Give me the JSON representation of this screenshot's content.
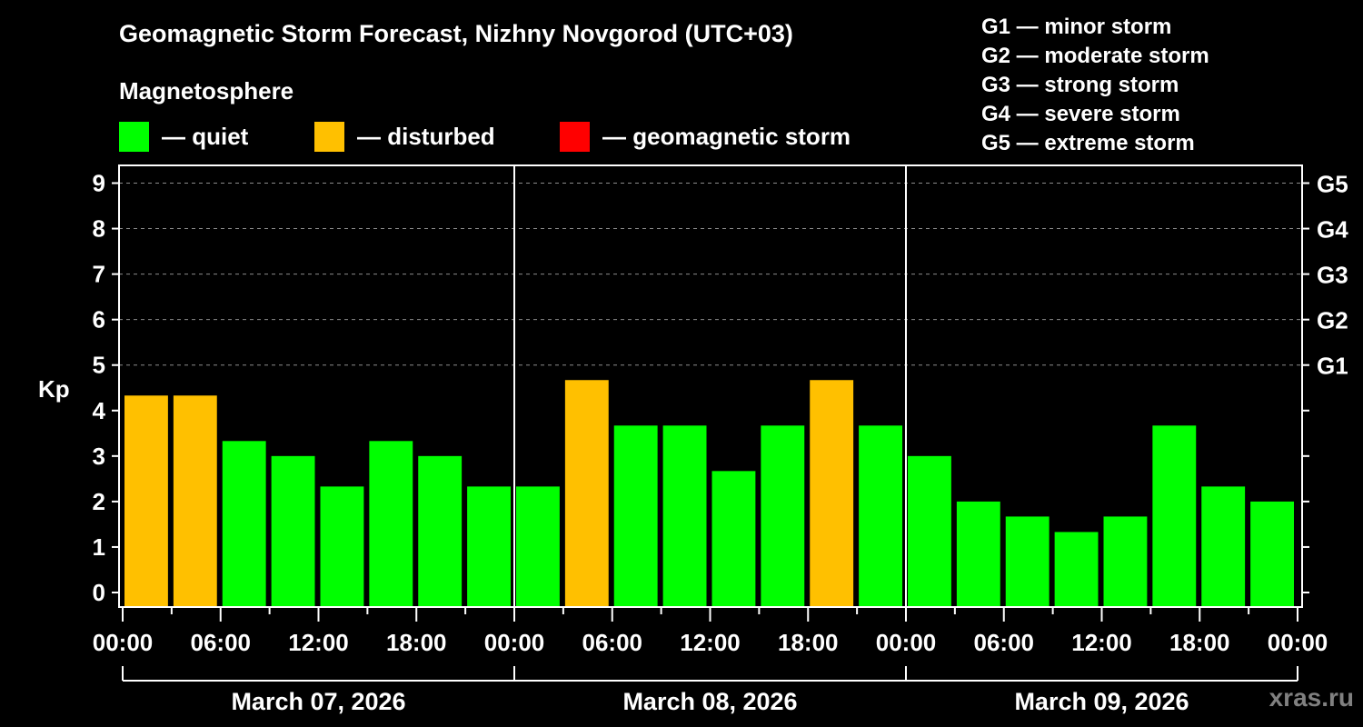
{
  "title": "Geomagnetic Storm Forecast, Nizhny Novgorod (UTC+03)",
  "legend": {
    "heading": "Magnetosphere",
    "items": [
      {
        "label": "— quiet",
        "color": "#00FF00"
      },
      {
        "label": "— disturbed",
        "color": "#FFC000"
      },
      {
        "label": "— geomagnetic storm",
        "color": "#FF0000"
      }
    ]
  },
  "g_scale": [
    "G1 — minor storm",
    "G2 — moderate storm",
    "G3 — strong storm",
    "G4 — severe storm",
    "G5 — extreme storm"
  ],
  "watermark": "xras.ru",
  "chart_data": {
    "type": "bar",
    "title": "Geomagnetic Storm Forecast, Nizhny Novgorod (UTC+03)",
    "xlabel": "",
    "ylabel": "Kp",
    "ylim": [
      0,
      9
    ],
    "yticks": [
      0,
      1,
      2,
      3,
      4,
      5,
      6,
      7,
      8,
      9
    ],
    "right_axis_labels": [
      {
        "kp": 5,
        "label": "G1"
      },
      {
        "kp": 6,
        "label": "G2"
      },
      {
        "kp": 7,
        "label": "G3"
      },
      {
        "kp": 8,
        "label": "G4"
      },
      {
        "kp": 9,
        "label": "G5"
      }
    ],
    "grid": "dashed horizontal at Kp 5-9",
    "x_tick_labels": [
      "00:00",
      "06:00",
      "12:00",
      "18:00",
      "00:00",
      "06:00",
      "12:00",
      "18:00",
      "00:00",
      "06:00",
      "12:00",
      "18:00",
      "00:00"
    ],
    "days": [
      "March 07, 2026",
      "March 08, 2026",
      "March 09, 2026"
    ],
    "interval_hours": 3,
    "categories": [
      "Mar 07 00-03",
      "Mar 07 03-06",
      "Mar 07 06-09",
      "Mar 07 09-12",
      "Mar 07 12-15",
      "Mar 07 15-18",
      "Mar 07 18-21",
      "Mar 07 21-24",
      "Mar 08 00-03",
      "Mar 08 03-06",
      "Mar 08 06-09",
      "Mar 08 09-12",
      "Mar 08 12-15",
      "Mar 08 15-18",
      "Mar 08 18-21",
      "Mar 08 21-24",
      "Mar 09 00-03",
      "Mar 09 03-06",
      "Mar 09 06-09",
      "Mar 09 09-12",
      "Mar 09 12-15",
      "Mar 09 15-18",
      "Mar 09 18-21",
      "Mar 09 21-24"
    ],
    "values": [
      4.33,
      4.33,
      3.33,
      3.0,
      2.33,
      3.33,
      3.0,
      2.33,
      2.33,
      4.67,
      3.67,
      3.67,
      2.67,
      3.67,
      4.67,
      3.67,
      3.0,
      2.0,
      1.67,
      1.33,
      1.67,
      3.67,
      2.33,
      2.0
    ],
    "status": [
      "disturbed",
      "disturbed",
      "quiet",
      "quiet",
      "quiet",
      "quiet",
      "quiet",
      "quiet",
      "quiet",
      "disturbed",
      "quiet",
      "quiet",
      "quiet",
      "quiet",
      "disturbed",
      "quiet",
      "quiet",
      "quiet",
      "quiet",
      "quiet",
      "quiet",
      "quiet",
      "quiet",
      "quiet"
    ],
    "colors": {
      "quiet": "#00FF00",
      "disturbed": "#FFC000",
      "storm": "#FF0000"
    }
  }
}
